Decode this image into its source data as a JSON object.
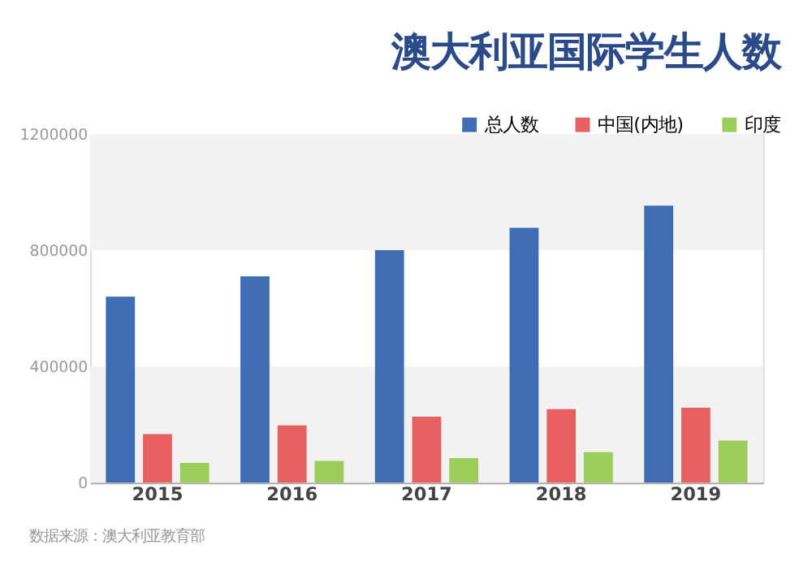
{
  "chart_data": {
    "type": "bar",
    "title": "澳大利亚国际学生人数",
    "categories": [
      "2015",
      "2016",
      "2017",
      "2018",
      "2019"
    ],
    "series": [
      {
        "name": "总人数",
        "color": "#3f6db3",
        "values": [
          640000,
          710000,
          800000,
          877000,
          953000
        ]
      },
      {
        "name": "中国(内地)",
        "color": "#e86161",
        "values": [
          167000,
          197000,
          227000,
          253000,
          258000
        ]
      },
      {
        "name": "印度",
        "color": "#9ccc5a",
        "values": [
          68000,
          75000,
          85000,
          105000,
          145000
        ]
      }
    ],
    "ylim": [
      0,
      1200000
    ],
    "yticks": [
      0,
      400000,
      800000,
      1200000
    ],
    "bands": [
      {
        "axis": "y",
        "from": 800000,
        "to": 1200000,
        "color": "#f2f2f2"
      },
      {
        "axis": "y",
        "from": 0,
        "to": 400000,
        "color": "#f2f2f2"
      }
    ],
    "grid": false,
    "legend": "top right",
    "annotations": [
      "数据来源：澳大利亚教育部"
    ]
  }
}
